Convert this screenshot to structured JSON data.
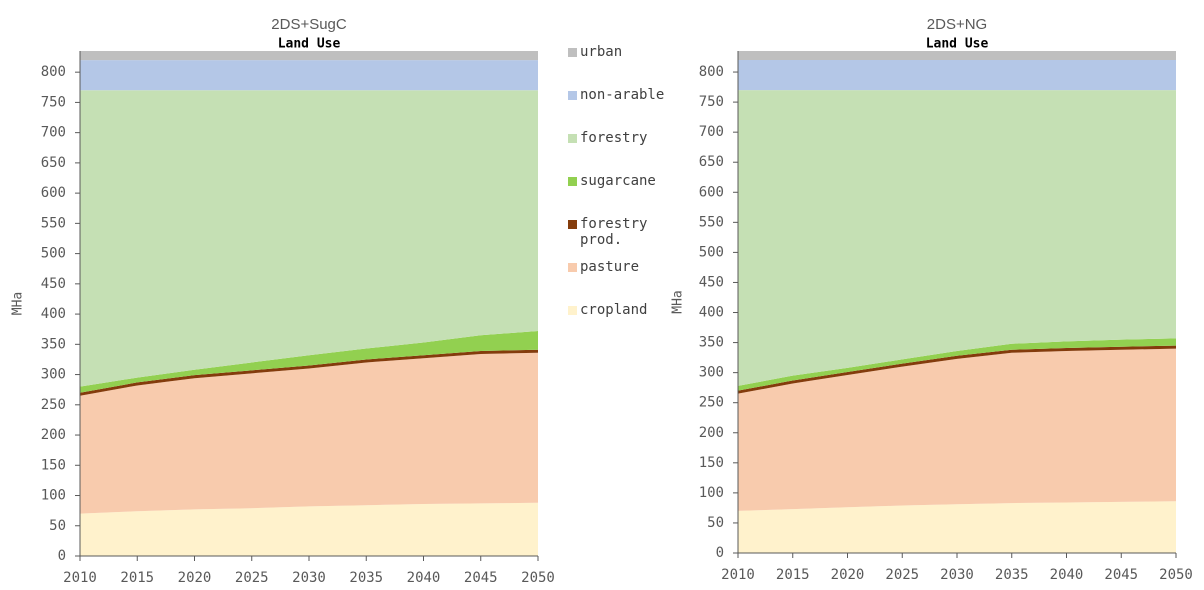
{
  "chart_data": [
    {
      "type": "area",
      "stacked": true,
      "title": "2DS+SugC",
      "subtitle": "Land Use",
      "y_label": "MHa",
      "x": [
        2010,
        2015,
        2020,
        2025,
        2030,
        2035,
        2040,
        2045,
        2050
      ],
      "xlim": [
        2010,
        2050
      ],
      "xticks": [
        2010,
        2015,
        2020,
        2025,
        2030,
        2035,
        2040,
        2045,
        2050
      ],
      "ylim": [
        0,
        835
      ],
      "yticks": [
        0,
        50,
        100,
        150,
        200,
        250,
        300,
        350,
        400,
        450,
        500,
        550,
        600,
        650,
        700,
        750,
        800
      ],
      "series": [
        {
          "name": "cropland",
          "color": "#fff2cc",
          "values": [
            70,
            74,
            77,
            79,
            82,
            84,
            86,
            87,
            88
          ]
        },
        {
          "name": "pasture",
          "color": "#f8cbad",
          "values": [
            195,
            208,
            217,
            223,
            228,
            236,
            241,
            247,
            248
          ]
        },
        {
          "name": "forestry prod.",
          "color": "#843c0c",
          "values": [
            5,
            5,
            5,
            5,
            5,
            5,
            5,
            5,
            5
          ]
        },
        {
          "name": "sugarcane",
          "color": "#92d050",
          "values": [
            10,
            8,
            9,
            13,
            17,
            18,
            21,
            26,
            31
          ]
        },
        {
          "name": "forestry",
          "color": "#c5e0b4",
          "values": [
            490,
            475,
            462,
            450,
            438,
            427,
            417,
            405,
            398
          ]
        },
        {
          "name": "non-arable",
          "color": "#b4c7e7",
          "values": [
            50,
            50,
            50,
            50,
            50,
            50,
            50,
            50,
            50
          ]
        },
        {
          "name": "urban",
          "color": "#bfbfbf",
          "values": [
            15,
            15,
            15,
            15,
            15,
            15,
            15,
            15,
            15
          ]
        }
      ]
    },
    {
      "type": "area",
      "stacked": true,
      "title": "2DS+NG",
      "subtitle": "Land Use",
      "y_label": "MHa",
      "x": [
        2010,
        2015,
        2020,
        2025,
        2030,
        2035,
        2040,
        2045,
        2050
      ],
      "xlim": [
        2010,
        2050
      ],
      "xticks": [
        2010,
        2015,
        2020,
        2025,
        2030,
        2035,
        2040,
        2045,
        2050
      ],
      "ylim": [
        0,
        835
      ],
      "yticks": [
        0,
        50,
        100,
        150,
        200,
        250,
        300,
        350,
        400,
        450,
        500,
        550,
        600,
        650,
        700,
        750,
        800
      ],
      "series": [
        {
          "color": "#fff2cc",
          "values": [
            70,
            73,
            76,
            79,
            81,
            83,
            84,
            85,
            86
          ]
        },
        {
          "color": "#f8cbad",
          "values": [
            195,
            209,
            220,
            231,
            242,
            250,
            252,
            253,
            254
          ]
        },
        {
          "color": "#843c0c",
          "values": [
            5,
            5,
            5,
            5,
            5,
            5,
            5,
            5,
            5
          ]
        },
        {
          "color": "#92d050",
          "values": [
            8,
            8,
            7,
            7,
            8,
            10,
            11,
            12,
            12
          ]
        },
        {
          "color": "#c5e0b4",
          "values": [
            492,
            475,
            462,
            448,
            434,
            422,
            418,
            415,
            413
          ]
        },
        {
          "color": "#b4c7e7",
          "values": [
            50,
            50,
            50,
            50,
            50,
            50,
            50,
            50,
            50
          ]
        },
        {
          "color": "#bfbfbf",
          "values": [
            15,
            15,
            15,
            15,
            15,
            15,
            15,
            15,
            15
          ]
        }
      ]
    }
  ]
}
